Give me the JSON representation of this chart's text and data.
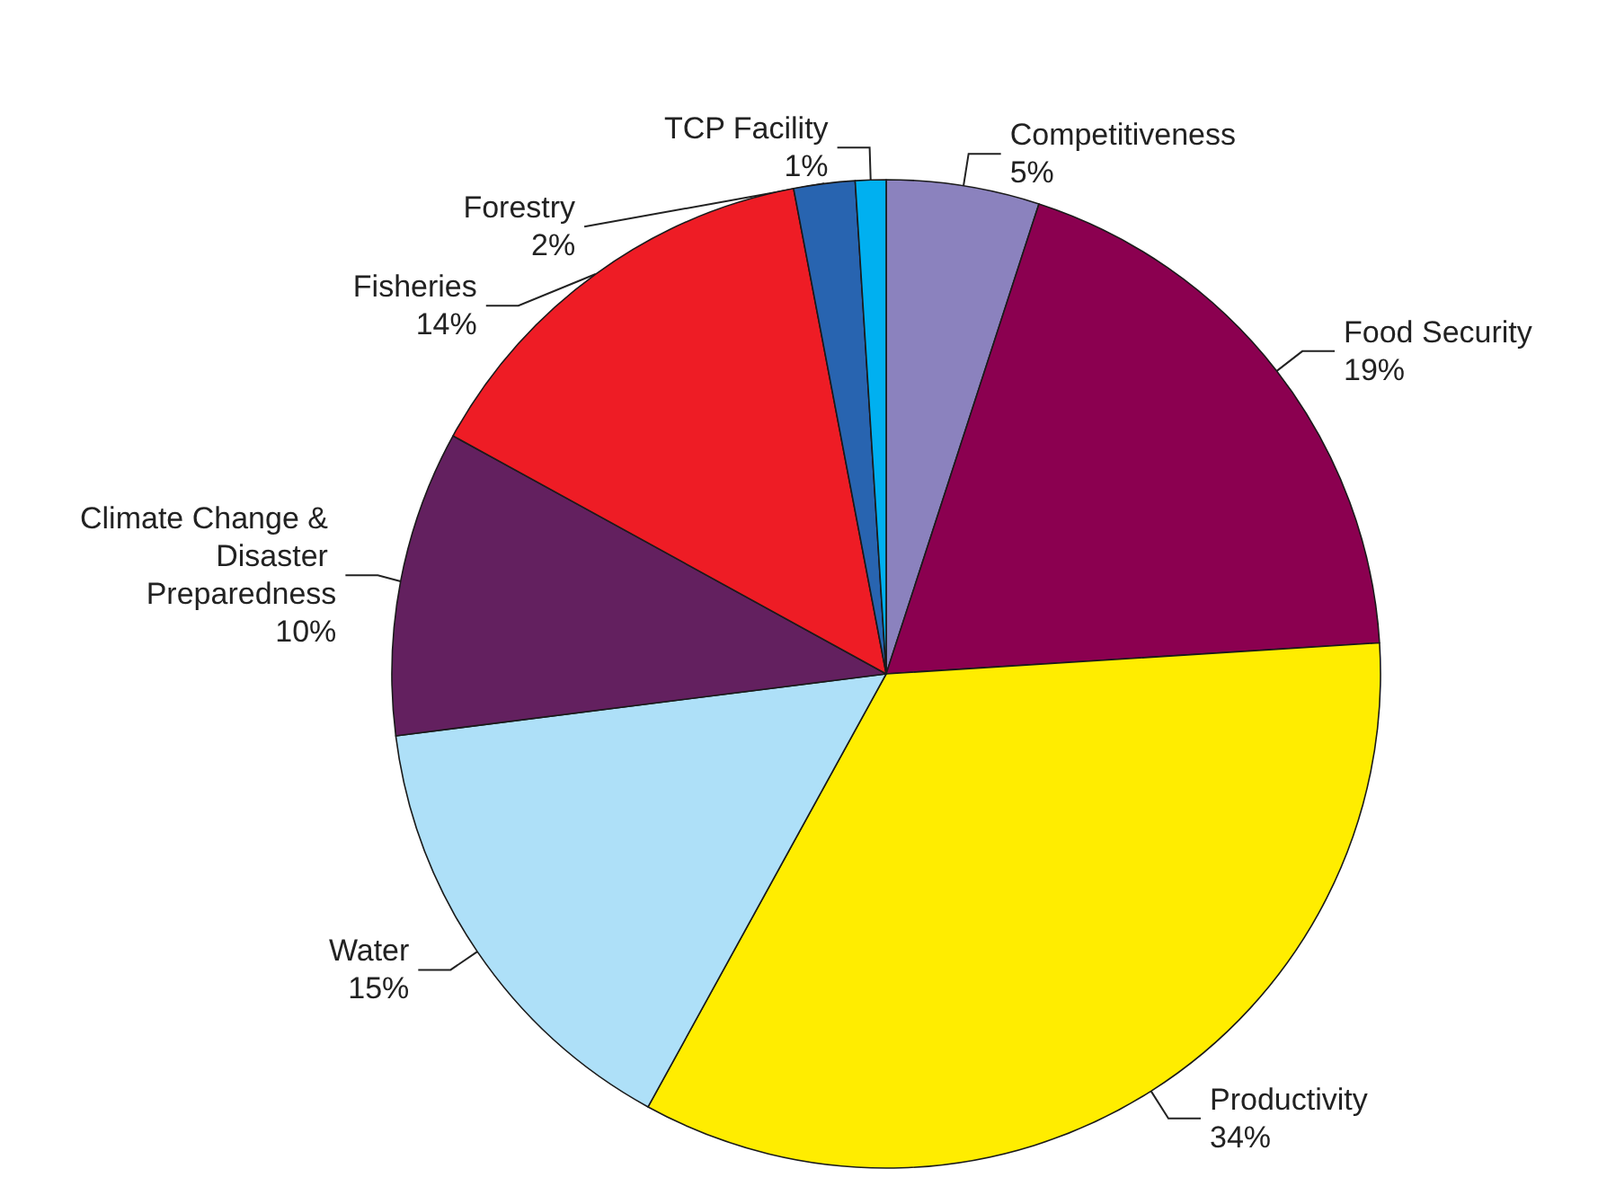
{
  "chart_data": {
    "type": "pie",
    "categories": [
      "Competitiveness",
      "Food Security",
      "Productivity",
      "Water",
      "Climate Change & Disaster Preparedness",
      "Fisheries",
      "Forestry",
      "TCP Facility"
    ],
    "values": [
      5,
      19,
      34,
      15,
      10,
      14,
      2,
      1
    ],
    "value_labels": [
      "5%",
      "19%",
      "34%",
      "15%",
      "10%",
      "14%",
      "2%",
      "1%"
    ],
    "colors": [
      "#8b82be",
      "#8b0050",
      "#ffed00",
      "#aee0f8",
      "#63205f",
      "#ee1c25",
      "#2864b0",
      "#00b0f0"
    ]
  }
}
